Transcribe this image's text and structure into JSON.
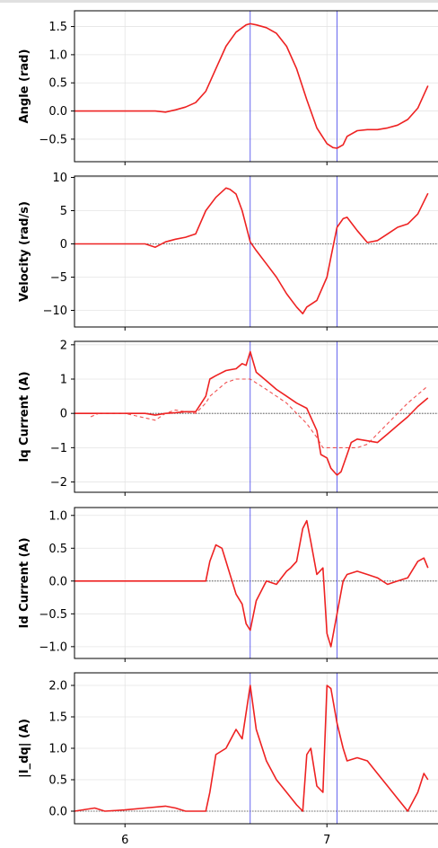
{
  "chart_data": [
    {
      "type": "line",
      "ylabel": "Angle (rad)",
      "ylim": [
        -0.9,
        1.78
      ],
      "yticks": [
        -0.5,
        0.0,
        0.5,
        1.0,
        1.5
      ],
      "ytick_labels": [
        "−0.5",
        "0.0",
        "0.5",
        "1.0",
        "1.5"
      ],
      "zero_line": false,
      "series": [
        {
          "role": "measured",
          "color": "#ee2222",
          "style": "solid",
          "x": [
            5.75,
            6.0,
            6.15,
            6.2,
            6.25,
            6.3,
            6.35,
            6.4,
            6.45,
            6.5,
            6.55,
            6.6,
            6.62,
            6.65,
            6.7,
            6.75,
            6.8,
            6.85,
            6.9,
            6.95,
            7.0,
            7.03,
            7.05,
            7.08,
            7.1,
            7.15,
            7.2,
            7.25,
            7.3,
            7.35,
            7.4,
            7.45,
            7.5
          ],
          "y": [
            0.0,
            0.0,
            0.0,
            -0.02,
            0.02,
            0.07,
            0.15,
            0.35,
            0.75,
            1.15,
            1.4,
            1.53,
            1.55,
            1.53,
            1.48,
            1.38,
            1.15,
            0.75,
            0.2,
            -0.3,
            -0.58,
            -0.65,
            -0.66,
            -0.6,
            -0.45,
            -0.35,
            -0.33,
            -0.33,
            -0.3,
            -0.25,
            -0.15,
            0.05,
            0.45
          ]
        }
      ]
    },
    {
      "type": "line",
      "ylabel": "Velocity (rad/s)",
      "ylim": [
        -12.5,
        10.2
      ],
      "yticks": [
        -10,
        -5,
        0,
        5,
        10
      ],
      "ytick_labels": [
        "−10",
        "−5",
        "0",
        "5",
        "10"
      ],
      "zero_line": true,
      "series": [
        {
          "role": "measured",
          "color": "#ee2222",
          "style": "solid",
          "x": [
            5.75,
            6.0,
            6.1,
            6.15,
            6.2,
            6.25,
            6.3,
            6.35,
            6.4,
            6.45,
            6.5,
            6.52,
            6.55,
            6.58,
            6.62,
            6.65,
            6.7,
            6.75,
            6.8,
            6.85,
            6.88,
            6.9,
            6.95,
            7.0,
            7.02,
            7.05,
            7.08,
            7.1,
            7.15,
            7.2,
            7.25,
            7.3,
            7.35,
            7.4,
            7.45,
            7.5
          ],
          "y": [
            0.0,
            0.0,
            0.0,
            -0.5,
            0.3,
            0.7,
            1.0,
            1.5,
            5.0,
            7.0,
            8.4,
            8.2,
            7.5,
            5.0,
            0.3,
            -1.0,
            -3.0,
            -5.0,
            -7.5,
            -9.5,
            -10.5,
            -9.5,
            -8.5,
            -5.0,
            -2.0,
            2.5,
            3.8,
            4.0,
            2.0,
            0.2,
            0.5,
            1.5,
            2.5,
            3.0,
            4.5,
            7.6
          ]
        }
      ]
    },
    {
      "type": "line",
      "ylabel": "Iq Current (A)",
      "ylim": [
        -2.3,
        2.1
      ],
      "yticks": [
        -2,
        -1,
        0,
        1,
        2
      ],
      "ytick_labels": [
        "−2",
        "−1",
        "0",
        "1",
        "2"
      ],
      "zero_line": true,
      "series": [
        {
          "role": "measured",
          "color": "#ee2222",
          "style": "solid",
          "x": [
            5.75,
            6.0,
            6.1,
            6.15,
            6.2,
            6.25,
            6.3,
            6.35,
            6.4,
            6.42,
            6.45,
            6.5,
            6.55,
            6.58,
            6.6,
            6.62,
            6.65,
            6.7,
            6.75,
            6.8,
            6.85,
            6.9,
            6.95,
            6.97,
            7.0,
            7.02,
            7.05,
            7.07,
            7.1,
            7.12,
            7.15,
            7.2,
            7.25,
            7.3,
            7.35,
            7.4,
            7.45,
            7.5
          ],
          "y": [
            0.0,
            0.0,
            0.0,
            -0.05,
            0.0,
            0.02,
            0.05,
            0.05,
            0.5,
            1.0,
            1.1,
            1.25,
            1.3,
            1.45,
            1.4,
            1.8,
            1.2,
            0.95,
            0.7,
            0.5,
            0.3,
            0.15,
            -0.5,
            -1.2,
            -1.3,
            -1.6,
            -1.8,
            -1.7,
            -1.2,
            -0.85,
            -0.75,
            -0.8,
            -0.85,
            -0.6,
            -0.35,
            -0.1,
            0.2,
            0.45
          ]
        },
        {
          "role": "reference",
          "color": "#ee3333",
          "style": "dashed",
          "x": [
            5.83,
            5.87,
            6.0,
            6.15,
            6.2,
            6.25,
            6.35,
            6.4,
            6.42,
            6.5,
            6.55,
            6.62,
            6.7,
            6.8,
            6.85,
            6.9,
            6.95,
            6.98,
            7.0,
            7.03,
            7.05,
            7.08,
            7.1,
            7.15,
            7.2,
            7.3,
            7.4,
            7.5
          ],
          "y": [
            -0.1,
            0.0,
            0.0,
            -0.2,
            0.0,
            0.1,
            0.0,
            0.3,
            0.5,
            0.9,
            1.0,
            1.0,
            0.7,
            0.3,
            0.0,
            -0.3,
            -0.7,
            -1.0,
            -1.0,
            -1.0,
            -1.0,
            -1.0,
            -1.0,
            -1.0,
            -0.9,
            -0.3,
            0.3,
            0.8
          ]
        }
      ]
    },
    {
      "type": "line",
      "ylabel": "Id Current (A)",
      "ylim": [
        -1.18,
        1.12
      ],
      "yticks": [
        -1.0,
        -0.5,
        0.0,
        0.5,
        1.0
      ],
      "ytick_labels": [
        "−1.0",
        "−0.5",
        "0.0",
        "0.5",
        "1.0"
      ],
      "zero_line": true,
      "series": [
        {
          "role": "measured",
          "color": "#ee2222",
          "style": "solid",
          "x": [
            5.75,
            6.0,
            6.2,
            6.4,
            6.42,
            6.45,
            6.48,
            6.5,
            6.55,
            6.58,
            6.6,
            6.62,
            6.65,
            6.7,
            6.75,
            6.8,
            6.82,
            6.85,
            6.88,
            6.9,
            6.92,
            6.95,
            6.98,
            7.0,
            7.02,
            7.05,
            7.08,
            7.1,
            7.15,
            7.2,
            7.25,
            7.3,
            7.35,
            7.4,
            7.45,
            7.48,
            7.5
          ],
          "y": [
            0.0,
            0.0,
            0.0,
            0.0,
            0.3,
            0.55,
            0.5,
            0.3,
            -0.2,
            -0.35,
            -0.65,
            -0.75,
            -0.3,
            0.0,
            -0.05,
            0.15,
            0.2,
            0.3,
            0.8,
            0.92,
            0.6,
            0.1,
            0.2,
            -0.8,
            -1.0,
            -0.5,
            0.0,
            0.1,
            0.15,
            0.1,
            0.05,
            -0.05,
            0.0,
            0.05,
            0.3,
            0.35,
            0.2
          ]
        }
      ]
    },
    {
      "type": "line",
      "ylabel": "|I_dq| (A)",
      "ylim": [
        -0.2,
        2.2
      ],
      "yticks": [
        0.0,
        0.5,
        1.0,
        1.5,
        2.0
      ],
      "ytick_labels": [
        "0.0",
        "0.5",
        "1.0",
        "1.5",
        "2.0"
      ],
      "zero_line": true,
      "xticks": [
        6,
        7
      ],
      "xtick_labels": [
        "6",
        "7"
      ],
      "xlim": [
        5.75,
        7.55
      ],
      "series": [
        {
          "role": "measured",
          "color": "#ee2222",
          "style": "solid",
          "x": [
            5.75,
            5.85,
            5.9,
            6.0,
            6.1,
            6.2,
            6.25,
            6.3,
            6.4,
            6.42,
            6.45,
            6.5,
            6.55,
            6.58,
            6.62,
            6.65,
            6.7,
            6.75,
            6.8,
            6.85,
            6.88,
            6.9,
            6.92,
            6.95,
            6.98,
            7.0,
            7.02,
            7.05,
            7.08,
            7.1,
            7.15,
            7.2,
            7.25,
            7.3,
            7.35,
            7.4,
            7.45,
            7.48,
            7.5
          ],
          "y": [
            0.0,
            0.05,
            0.0,
            0.02,
            0.05,
            0.08,
            0.05,
            0.0,
            0.0,
            0.3,
            0.9,
            1.0,
            1.3,
            1.15,
            2.0,
            1.3,
            0.8,
            0.5,
            0.3,
            0.1,
            0.0,
            0.9,
            1.0,
            0.4,
            0.3,
            2.0,
            1.95,
            1.4,
            1.0,
            0.8,
            0.85,
            0.8,
            0.6,
            0.4,
            0.2,
            0.0,
            0.3,
            0.6,
            0.5
          ]
        }
      ]
    }
  ],
  "markers": {
    "x": [
      6.62,
      7.05
    ],
    "color": "#5555ee"
  }
}
